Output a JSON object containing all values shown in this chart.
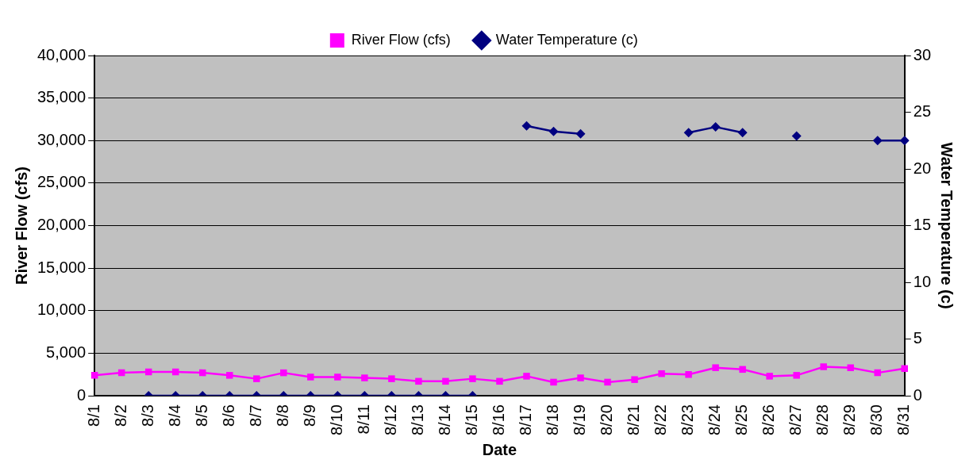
{
  "chart_data": {
    "type": "line",
    "xlabel": "Date",
    "ylabel": "River Flow (cfs)",
    "y2label": "Water Temperature (c)",
    "categories": [
      "8/1",
      "8/2",
      "8/3",
      "8/4",
      "8/5",
      "8/6",
      "8/7",
      "8/8",
      "8/9",
      "8/10",
      "8/11",
      "8/12",
      "8/13",
      "8/14",
      "8/15",
      "8/16",
      "8/17",
      "8/18",
      "8/19",
      "8/20",
      "8/21",
      "8/22",
      "8/23",
      "8/24",
      "8/25",
      "8/26",
      "8/27",
      "8/28",
      "8/29",
      "8/30",
      "8/31"
    ],
    "series": [
      {
        "name": "River Flow (cfs)",
        "color": "#ff00ff",
        "marker": "square",
        "values": [
          2400,
          2700,
          2800,
          2800,
          2700,
          2400,
          2000,
          2700,
          2200,
          2200,
          2100,
          2000,
          1700,
          1700,
          2000,
          1700,
          2300,
          1600,
          2100,
          1600,
          1900,
          2600,
          2500,
          3300,
          3100,
          2300,
          2400,
          3400,
          3300,
          2700,
          3200
        ]
      },
      {
        "name": "Water Temperature (c)",
        "color": "#000080",
        "marker": "diamond",
        "axis": "y2",
        "values": [
          null,
          null,
          0,
          0,
          0,
          0,
          0,
          0,
          0,
          0,
          0,
          0,
          0,
          0,
          0,
          null,
          23.8,
          23.3,
          23.1,
          null,
          null,
          null,
          23.2,
          23.7,
          23.2,
          null,
          22.9,
          null,
          null,
          22.5,
          22.5
        ]
      }
    ],
    "ylim": [
      0,
      40000
    ],
    "yticks": [
      {
        "value": 0,
        "label": "0"
      },
      {
        "value": 5000,
        "label": "5,000"
      },
      {
        "value": 10000,
        "label": "10,000"
      },
      {
        "value": 15000,
        "label": "15,000"
      },
      {
        "value": 20000,
        "label": "20,000"
      },
      {
        "value": 25000,
        "label": "25,000"
      },
      {
        "value": 30000,
        "label": "30,000"
      },
      {
        "value": 35000,
        "label": "35,000"
      },
      {
        "value": 40000,
        "label": "40,000"
      }
    ],
    "y2lim": [
      0,
      30
    ],
    "y2ticks": [
      0,
      5,
      10,
      15,
      20,
      25,
      30
    ],
    "grid": "y",
    "legend": "top",
    "line_style": "solid"
  }
}
